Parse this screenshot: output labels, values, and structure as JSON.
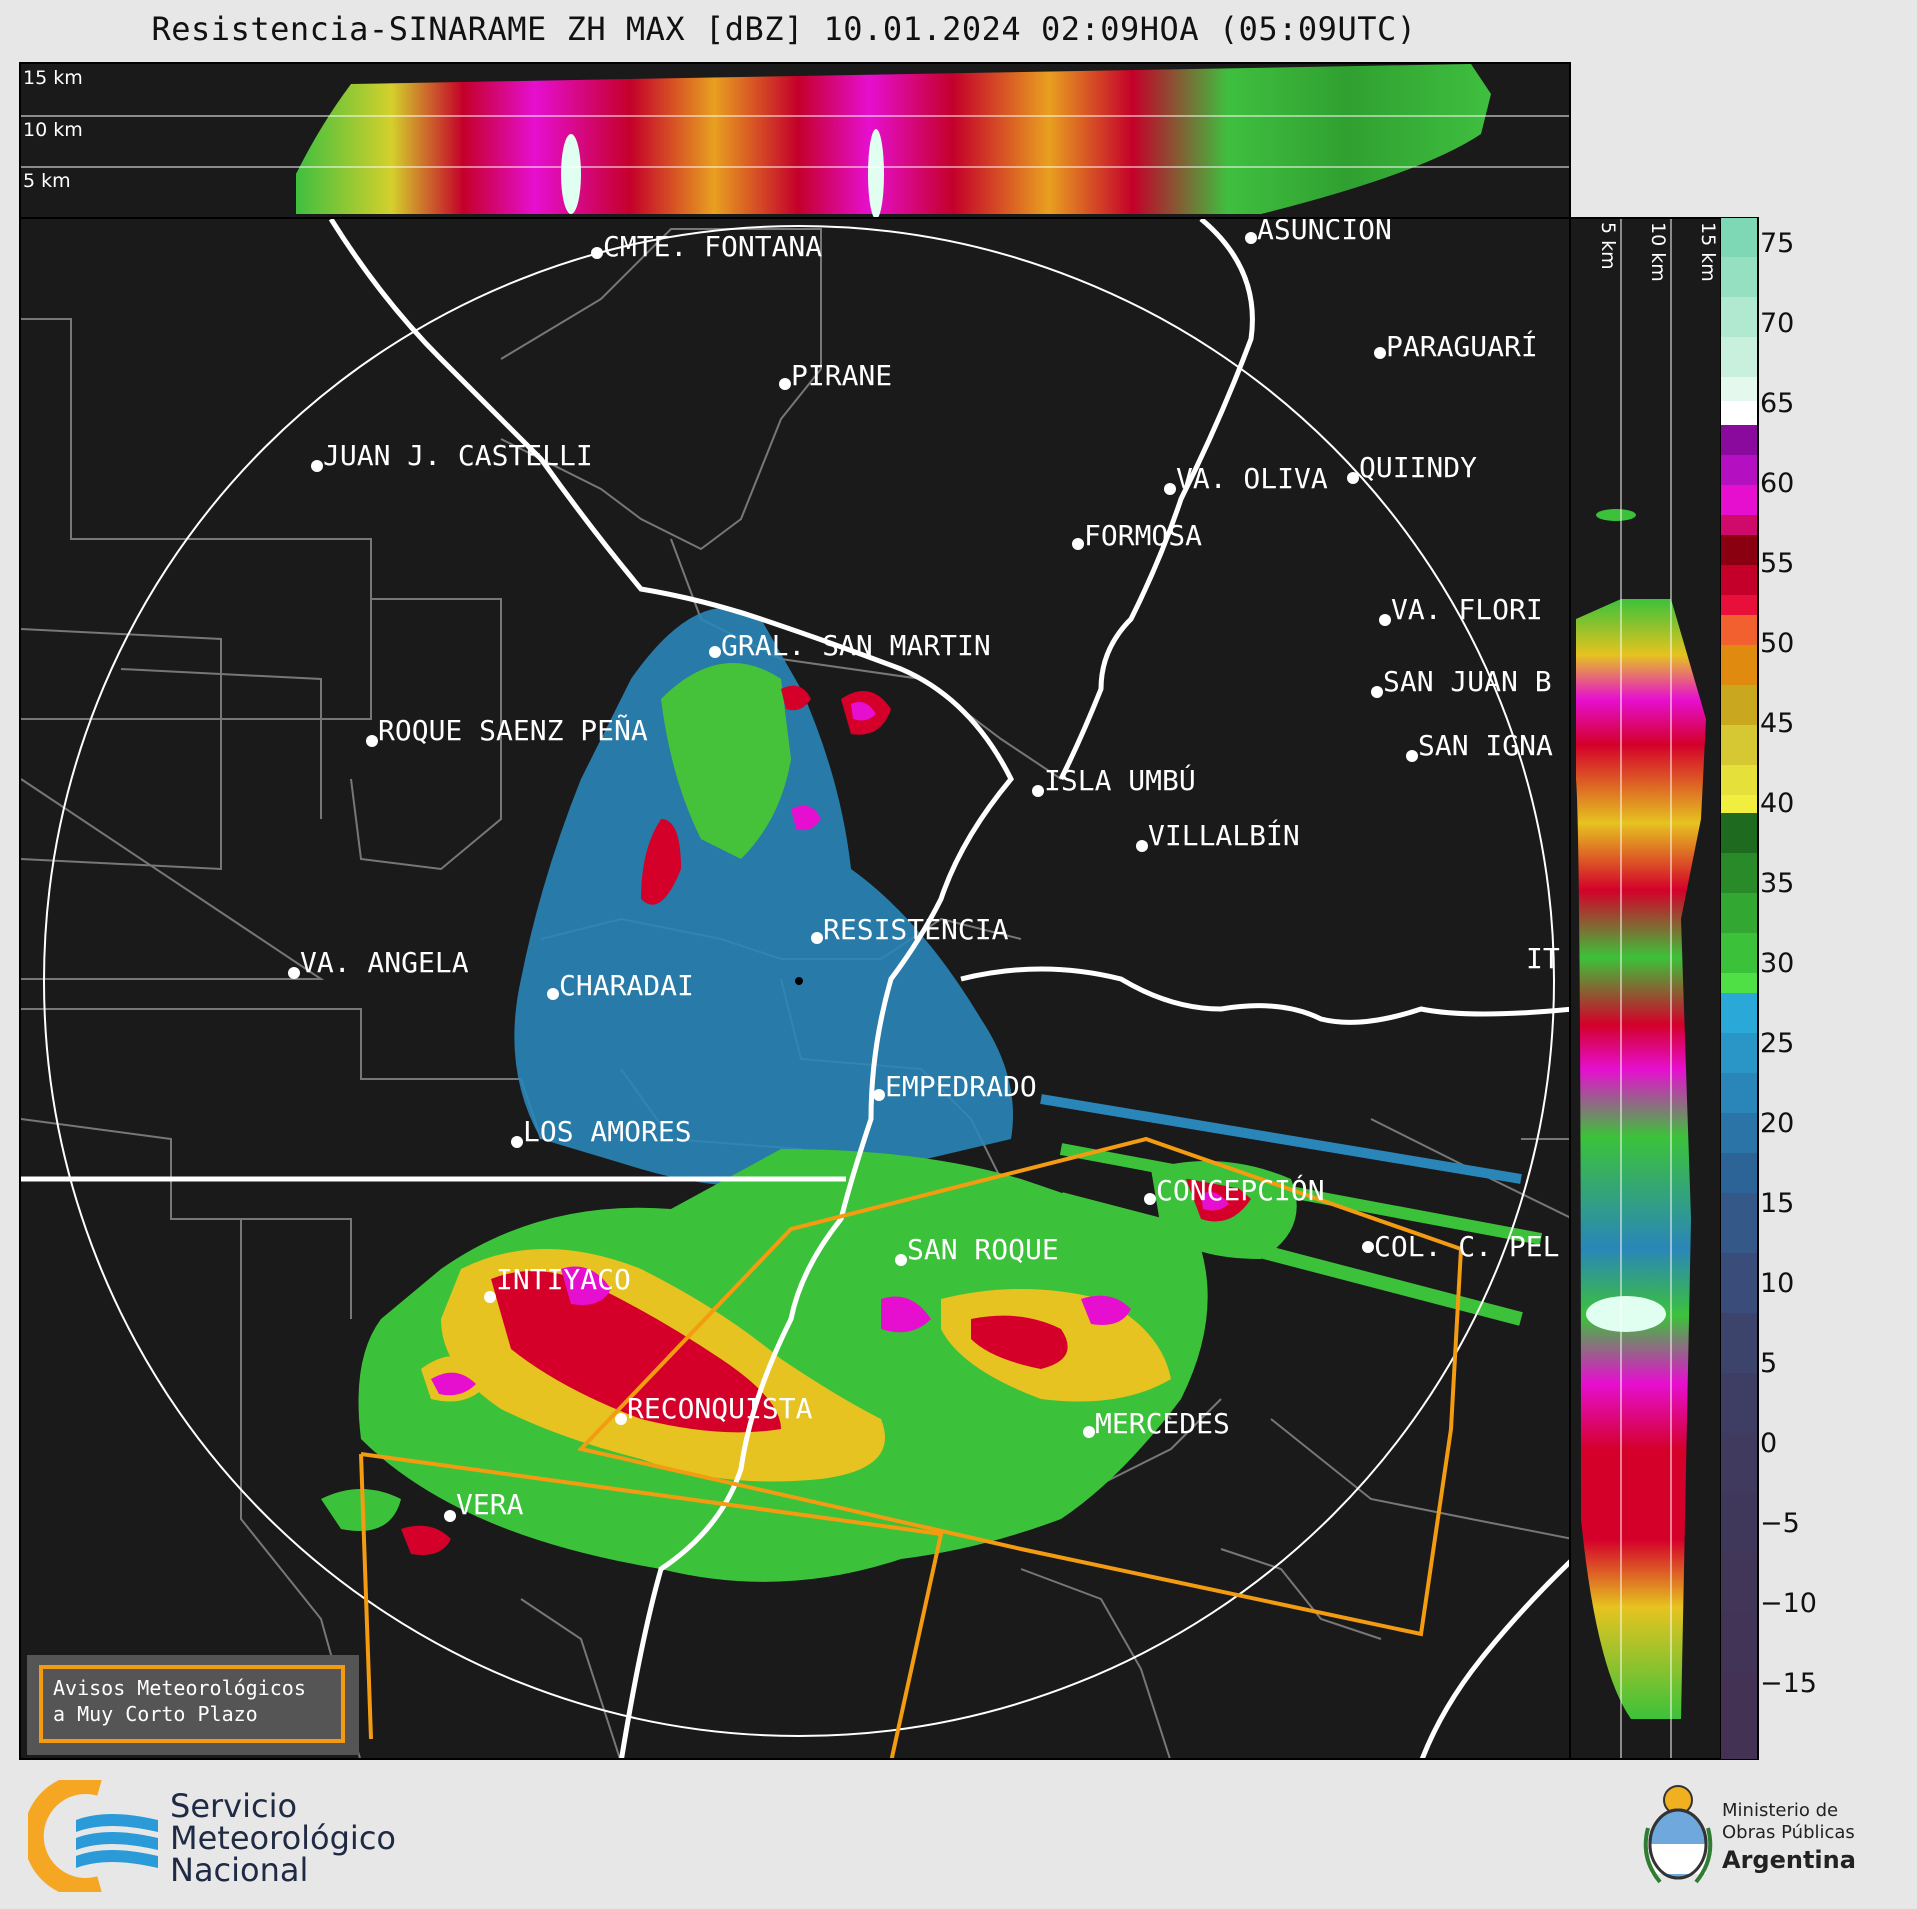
{
  "title": "Resistencia-SINARAME ZH MAX [dBZ] 10.01.2024 02:09HOA (05:09UTC)",
  "top_panel": {
    "labels": [
      "15 km",
      "10 km",
      "5 km"
    ]
  },
  "side_panel": {
    "labels": [
      "5 km",
      "10 km",
      "15 km"
    ]
  },
  "colorbar": {
    "ticks": [
      "75",
      "70",
      "65",
      "60",
      "55",
      "50",
      "45",
      "40",
      "35",
      "30",
      "25",
      "20",
      "15",
      "10",
      "5",
      "0",
      "−5",
      "−10",
      "−15"
    ]
  },
  "places": [
    {
      "name": "CMTE. FONTANA",
      "label": "CMTE. FONTANA"
    },
    {
      "name": "ASUNCIÓN",
      "label": "ASUNCIÓN"
    },
    {
      "name": "PARAGUARÍ",
      "label": "PARAGUARÍ"
    },
    {
      "name": "PIRANE",
      "label": "PIRANE"
    },
    {
      "name": "JUAN J. CASTELLI",
      "label": "JUAN J. CASTELLI"
    },
    {
      "name": "VA. OLIVA",
      "label": "VA. OLIVA"
    },
    {
      "name": "QUIINDY",
      "label": "QUIINDY"
    },
    {
      "name": "FORMOSA",
      "label": "FORMOSA"
    },
    {
      "name": "VA. FLORIDA",
      "label": "VA. FLORI"
    },
    {
      "name": "GRAL. SAN MARTIN",
      "label": "GRAL. SAN MARTIN"
    },
    {
      "name": "SAN JUAN B",
      "label": "SAN JUAN B"
    },
    {
      "name": "ROQUE SAENZ PEÑA",
      "label": "ROQUE SAENZ PEÑA"
    },
    {
      "name": "SAN IGNACIO",
      "label": "SAN IGNA"
    },
    {
      "name": "ISLA UMBÚ",
      "label": "ISLA UMBÚ"
    },
    {
      "name": "VILLALBÍN",
      "label": "VILLALBÍN"
    },
    {
      "name": "RESISTENCIA",
      "label": "RESISTENCIA"
    },
    {
      "name": "VA. ANGELA",
      "label": "VA. ANGELA"
    },
    {
      "name": "CHARADAI",
      "label": "CHARADAI"
    },
    {
      "name": "ITATÍ",
      "label": "IT"
    },
    {
      "name": "EMPEDRADO",
      "label": "EMPEDRADO"
    },
    {
      "name": "LOS AMORES",
      "label": "LOS AMORES"
    },
    {
      "name": "CONCEPCIÓN",
      "label": "CONCEPCIÓN"
    },
    {
      "name": "SAN ROQUE",
      "label": "SAN ROQUE"
    },
    {
      "name": "COL. C. PELLEGRINI",
      "label": "COL. C. PEL"
    },
    {
      "name": "INTIYACO",
      "label": "INTIYACO"
    },
    {
      "name": "RECONQUISTA",
      "label": "RECONQUISTA"
    },
    {
      "name": "MERCEDES",
      "label": "MERCEDES"
    },
    {
      "name": "VERA",
      "label": "VERA"
    }
  ],
  "legend_box": {
    "line1": "Avisos Meteorológicos",
    "line2": "a Muy Corto Plazo"
  },
  "logo_smn": {
    "line1": "Servicio",
    "line2": "Meteorológico",
    "line3": "Nacional"
  },
  "logo_ministerio": {
    "line1": "Ministerio de",
    "line2": "Obras Públicas",
    "line3": "Argentina"
  },
  "colors": {
    "warning_outline": "#f39c12",
    "background": "#1a1a1a"
  }
}
